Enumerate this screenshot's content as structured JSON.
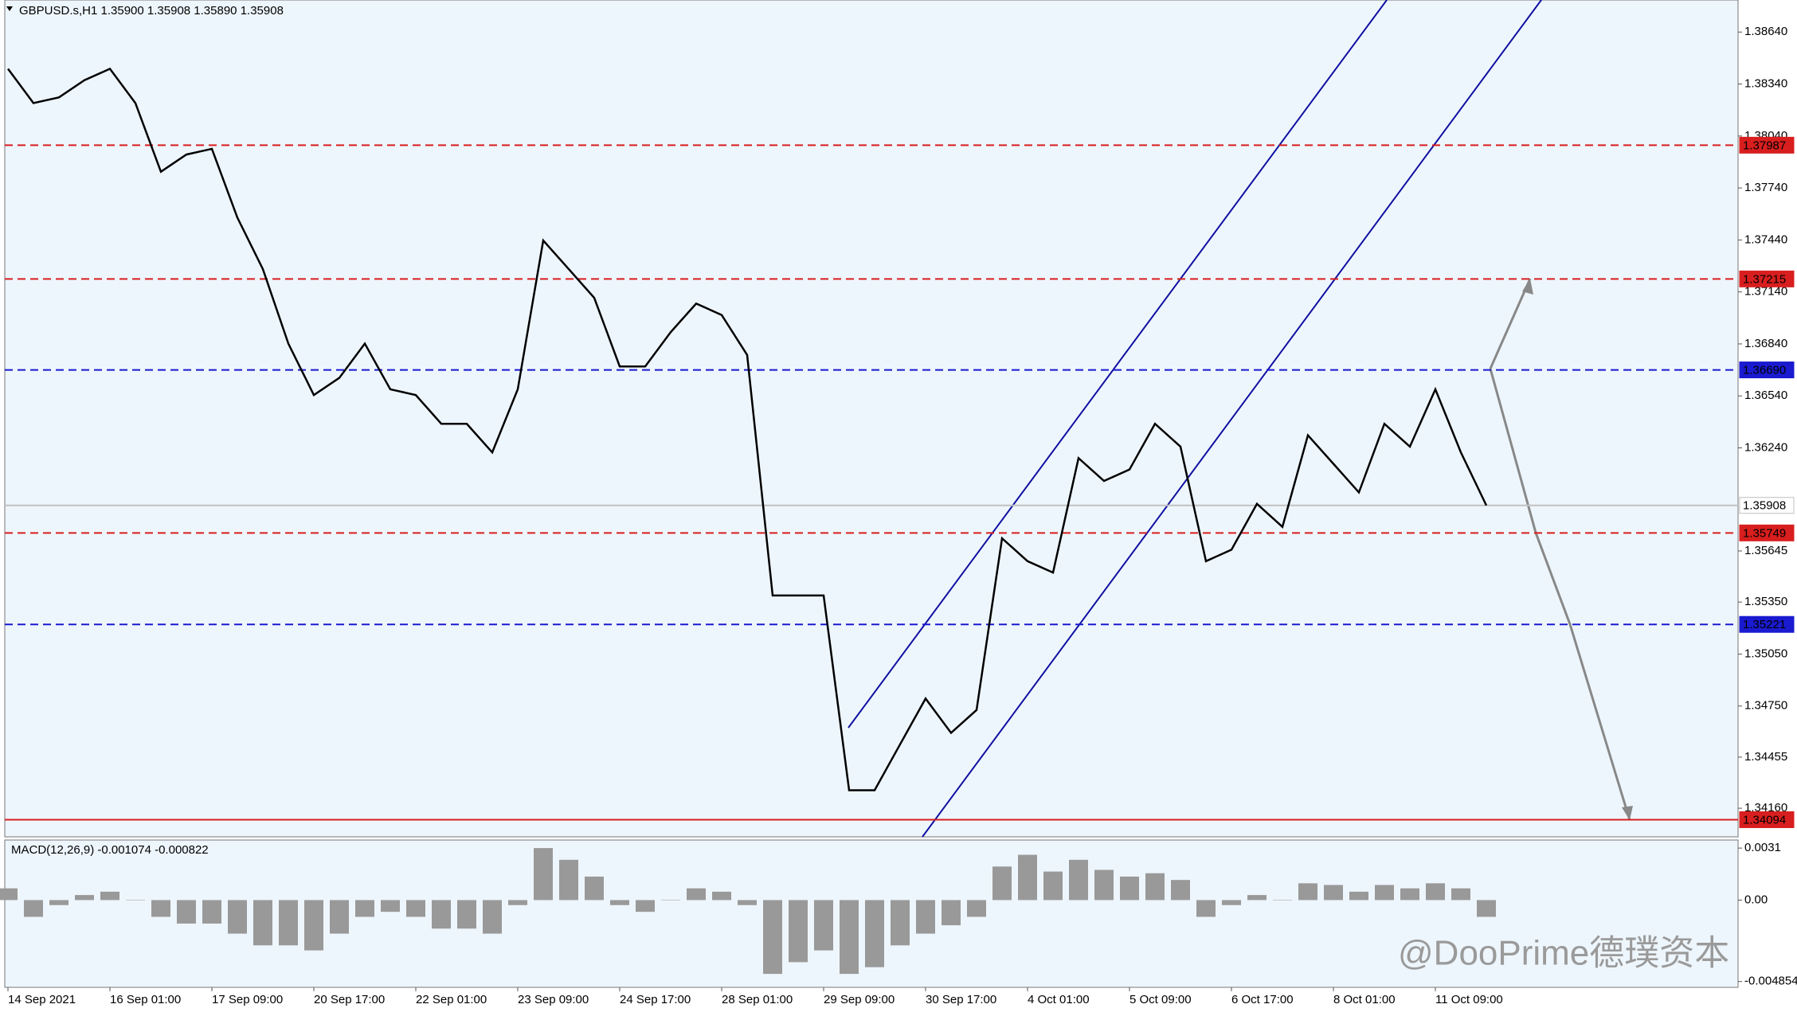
{
  "title": "GBPUSD.s,H1  1.35900 1.35908 1.35890 1.35908",
  "watermark": "@DooPrime德璞资本",
  "chart_data": [
    {
      "type": "line",
      "color": "#000000",
      "categories": [
        "14 Sep 2021",
        null,
        null,
        null,
        "16 Sep 01:00",
        null,
        null,
        null,
        "17 Sep 09:00",
        null,
        null,
        null,
        "20 Sep 17:00",
        null,
        null,
        null,
        "22 Sep 01:00",
        null,
        null,
        null,
        "23 Sep 09:00",
        null,
        null,
        null,
        "24 Sep 17:00",
        null,
        null,
        null,
        "28 Sep 01:00",
        null,
        null,
        null,
        "29 Sep 09:00",
        null,
        null,
        null,
        "30 Sep 17:00",
        null,
        null,
        null,
        "4 Oct 01:00",
        null,
        null,
        null,
        "5 Oct 09:00",
        null,
        null,
        null,
        "6 Oct 17:00",
        null,
        null,
        null,
        "8 Oct 01:00",
        null,
        null,
        null,
        "11 Oct 09:00",
        null,
        null
      ],
      "values": [
        1.38428,
        1.3823,
        1.38263,
        1.38362,
        1.38428,
        1.3823,
        1.37834,
        1.37933,
        1.37966,
        1.37569,
        1.37272,
        1.36842,
        1.36545,
        1.36644,
        1.36842,
        1.36578,
        1.36545,
        1.36379,
        1.36379,
        1.36214,
        1.36578,
        1.37437,
        1.37272,
        1.37106,
        1.3671,
        1.3671,
        1.36908,
        1.37073,
        1.37007,
        1.36776,
        1.35388,
        1.35388,
        1.35388,
        1.34264,
        1.34264,
        1.34529,
        1.34793,
        1.34595,
        1.34727,
        1.35718,
        1.35586,
        1.3552,
        1.36181,
        1.36049,
        1.36115,
        1.36379,
        1.36247,
        1.35586,
        1.35652,
        1.35917,
        1.35784,
        1.36313,
        1.36148,
        1.35983,
        1.36379,
        1.36247,
        1.36578,
        1.36214,
        1.35908
      ],
      "ylim": [
        1.33995,
        1.38825
      ],
      "yticks": [
        {
          "value": 1.3864,
          "label": "1.38640"
        },
        {
          "value": 1.3834,
          "label": "1.38340"
        },
        {
          "value": 1.3804,
          "label": "1.38040"
        },
        {
          "value": 1.3774,
          "label": "1.37740"
        },
        {
          "value": 1.3744,
          "label": "1.37440"
        },
        {
          "value": 1.3714,
          "label": "1.37140"
        },
        {
          "value": 1.3684,
          "label": "1.36840"
        },
        {
          "value": 1.3654,
          "label": "1.36540"
        },
        {
          "value": 1.3624,
          "label": "1.36240"
        },
        1.35645,
        {
          "value": 1.3535,
          "label": "1.35350"
        },
        {
          "value": 1.3505,
          "label": "1.35050"
        },
        {
          "value": 1.3475,
          "label": "1.34750"
        },
        1.34455,
        {
          "value": 1.3416,
          "label": "1.34160"
        }
      ],
      "levels": [
        {
          "value": 1.37987,
          "label": "1.37987",
          "color": "#d81e1e",
          "text_color": "#ffffff",
          "style": "dashed"
        },
        {
          "value": 1.37215,
          "label": "1.37215",
          "color": "#d81e1e",
          "text_color": "#ffffff",
          "style": "dashed"
        },
        {
          "value": 1.3669,
          "label": "1.36690",
          "color": "#1a1ad0",
          "text_color": "#ffffff",
          "style": "dashed"
        },
        {
          "value": 1.35908,
          "label": "1.35908",
          "color": "#c0c0c0",
          "text_color": "#000000",
          "style": "solid"
        },
        {
          "value": 1.35749,
          "label": "1.35749",
          "color": "#d81e1e",
          "text_color": "#ffffff",
          "style": "dashed"
        },
        {
          "value": 1.35221,
          "label": "1.35221",
          "color": "#1a1ad0",
          "text_color": "#ffffff",
          "style": "dashed"
        },
        {
          "value": 1.34094,
          "label": "1.34094",
          "color": "#d81e1e",
          "text_color": "#ffffff",
          "style": "solid"
        }
      ]
    },
    {
      "type": "bar",
      "title": "MACD(12,26,9) -0.001074 -0.000822",
      "color": "#999999",
      "values": [
        0.0007,
        -0.001,
        -0.0003,
        0.0003,
        0.0005,
        0,
        -0.001,
        -0.0014,
        -0.0014,
        -0.002,
        -0.0027,
        -0.0027,
        -0.003,
        -0.002,
        -0.001,
        -0.0007,
        -0.001,
        -0.0017,
        -0.0017,
        -0.002,
        -0.0003,
        0.0031,
        0.0024,
        0.0014,
        -0.0003,
        -0.0007,
        0,
        0.0007,
        0.0005,
        -0.0003,
        -0.0044,
        -0.0037,
        -0.003,
        -0.0044,
        -0.004,
        -0.0027,
        -0.002,
        -0.0015,
        -0.001,
        0.002,
        0.0027,
        0.0017,
        0.0024,
        0.0018,
        0.0014,
        0.0016,
        0.0012,
        -0.001,
        -0.0003,
        0.0003,
        0,
        0.001,
        0.0009,
        0.0005,
        0.0009,
        0.0007,
        0.001,
        0.0007,
        -0.001
      ],
      "ylim": [
        -0.0052,
        0.00358
      ],
      "yticks": [
        0.0031,
        {
          "value": 0,
          "label": "0.00"
        },
        -0.004854
      ]
    }
  ]
}
